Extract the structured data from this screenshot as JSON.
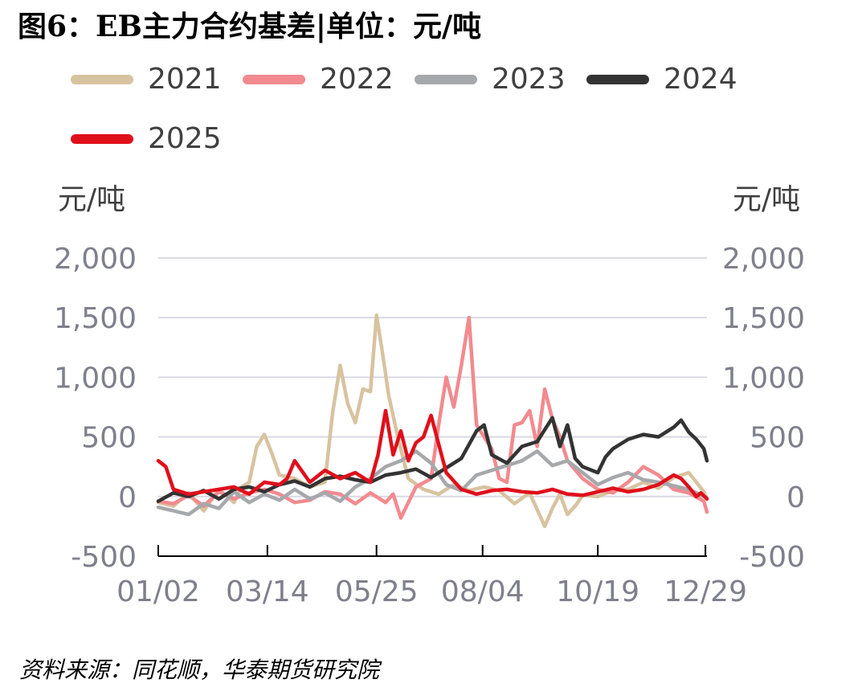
{
  "title": "图6：EB主力合约基差|单位：元/吨",
  "source": "资料来源：同花顺，华泰期货研究院",
  "colors": {
    "2021": "#d8c3a0",
    "2022": "#f28a8f",
    "2023": "#a6a8ab",
    "2024": "#333333",
    "2025": "#e00f1c",
    "axis_text": "#7f7f8c",
    "grid": "#d9d9e3",
    "axis": "#000000"
  },
  "chart_data": {
    "type": "line",
    "title": "",
    "ylabel_left": "元/吨",
    "ylabel_right": "元/吨",
    "ylim": [
      -500,
      2000
    ],
    "yticks": [
      -500,
      0,
      500,
      1000,
      1500,
      2000
    ],
    "ytick_labels": [
      "-500",
      "0",
      "500",
      "1,000",
      "1,500",
      "2,000"
    ],
    "xlim": [
      0,
      362
    ],
    "xticks": [
      0,
      72,
      144,
      214,
      290,
      361
    ],
    "xtick_labels": [
      "01/02",
      "03/14",
      "05/25",
      "08/04",
      "10/19",
      "12/29"
    ],
    "grid": true,
    "legend_position": "top",
    "series": [
      {
        "name": "2021",
        "x": [
          0,
          10,
          20,
          30,
          40,
          50,
          55,
          60,
          65,
          70,
          75,
          80,
          90,
          100,
          110,
          115,
          120,
          125,
          130,
          135,
          140,
          144,
          148,
          152,
          158,
          165,
          175,
          185,
          195,
          205,
          215,
          225,
          235,
          245,
          255,
          260,
          265,
          270,
          275,
          280,
          290,
          300,
          310,
          320,
          330,
          340,
          350,
          355,
          360,
          362
        ],
        "y": [
          -50,
          -80,
          30,
          -120,
          60,
          -50,
          80,
          120,
          420,
          520,
          360,
          180,
          150,
          80,
          120,
          700,
          1100,
          780,
          620,
          900,
          880,
          1520,
          1200,
          850,
          500,
          150,
          60,
          20,
          100,
          50,
          80,
          50,
          -60,
          30,
          -250,
          -100,
          20,
          -150,
          -80,
          10,
          0,
          50,
          60,
          120,
          70,
          160,
          200,
          120,
          40,
          -20
        ]
      },
      {
        "name": "2022",
        "x": [
          0,
          10,
          20,
          30,
          40,
          50,
          60,
          70,
          80,
          90,
          100,
          110,
          120,
          130,
          140,
          150,
          155,
          160,
          170,
          180,
          185,
          190,
          195,
          200,
          205,
          210,
          220,
          225,
          230,
          235,
          240,
          245,
          250,
          255,
          260,
          265,
          270,
          280,
          290,
          300,
          310,
          320,
          330,
          340,
          350,
          360,
          362
        ],
        "y": [
          -40,
          -60,
          10,
          -80,
          40,
          -20,
          30,
          60,
          20,
          -50,
          -30,
          40,
          20,
          -60,
          30,
          -50,
          20,
          -180,
          80,
          150,
          600,
          1000,
          750,
          1100,
          1500,
          600,
          400,
          150,
          120,
          600,
          620,
          720,
          420,
          900,
          650,
          500,
          300,
          150,
          60,
          30,
          120,
          250,
          180,
          60,
          30,
          -40,
          -130
        ]
      },
      {
        "name": "2023",
        "x": [
          0,
          10,
          20,
          30,
          40,
          50,
          60,
          70,
          80,
          90,
          100,
          110,
          120,
          130,
          140,
          150,
          160,
          170,
          180,
          190,
          200,
          210,
          220,
          230,
          240,
          250,
          260,
          270,
          280,
          290,
          300,
          310,
          320,
          330,
          340,
          350,
          360,
          362
        ],
        "y": [
          -90,
          -120,
          -150,
          -60,
          -100,
          40,
          -50,
          20,
          -30,
          60,
          -20,
          30,
          -40,
          80,
          150,
          250,
          300,
          380,
          280,
          100,
          50,
          180,
          220,
          260,
          300,
          380,
          260,
          300,
          200,
          100,
          160,
          200,
          140,
          120,
          90,
          60,
          0,
          -10
        ]
      },
      {
        "name": "2024",
        "x": [
          0,
          10,
          20,
          30,
          40,
          50,
          60,
          70,
          80,
          90,
          100,
          110,
          120,
          130,
          140,
          150,
          160,
          170,
          180,
          190,
          200,
          210,
          215,
          220,
          230,
          240,
          250,
          255,
          260,
          265,
          270,
          275,
          280,
          290,
          295,
          300,
          310,
          320,
          330,
          340,
          345,
          350,
          355,
          360,
          362
        ],
        "y": [
          -40,
          30,
          0,
          50,
          -20,
          60,
          80,
          40,
          100,
          130,
          80,
          150,
          170,
          140,
          120,
          180,
          200,
          230,
          160,
          240,
          320,
          550,
          600,
          350,
          280,
          420,
          460,
          560,
          660,
          420,
          600,
          320,
          250,
          200,
          330,
          400,
          480,
          520,
          500,
          580,
          640,
          540,
          480,
          400,
          300
        ]
      },
      {
        "name": "2025",
        "x": [
          0,
          5,
          10,
          20,
          30,
          40,
          50,
          60,
          70,
          80,
          85,
          90,
          100,
          110,
          120,
          130,
          140,
          145,
          150,
          155,
          160,
          165,
          170,
          175,
          180,
          190,
          200,
          210,
          220,
          230,
          240,
          250,
          260,
          270,
          280,
          290,
          300,
          310,
          320,
          330,
          340,
          345,
          350,
          355,
          358,
          362
        ],
        "y": [
          300,
          250,
          60,
          20,
          40,
          60,
          80,
          20,
          120,
          100,
          150,
          300,
          120,
          220,
          150,
          200,
          120,
          350,
          720,
          350,
          550,
          300,
          450,
          500,
          680,
          200,
          60,
          20,
          50,
          60,
          40,
          30,
          60,
          20,
          10,
          40,
          70,
          40,
          60,
          100,
          180,
          150,
          80,
          0,
          30,
          -20
        ]
      }
    ]
  }
}
